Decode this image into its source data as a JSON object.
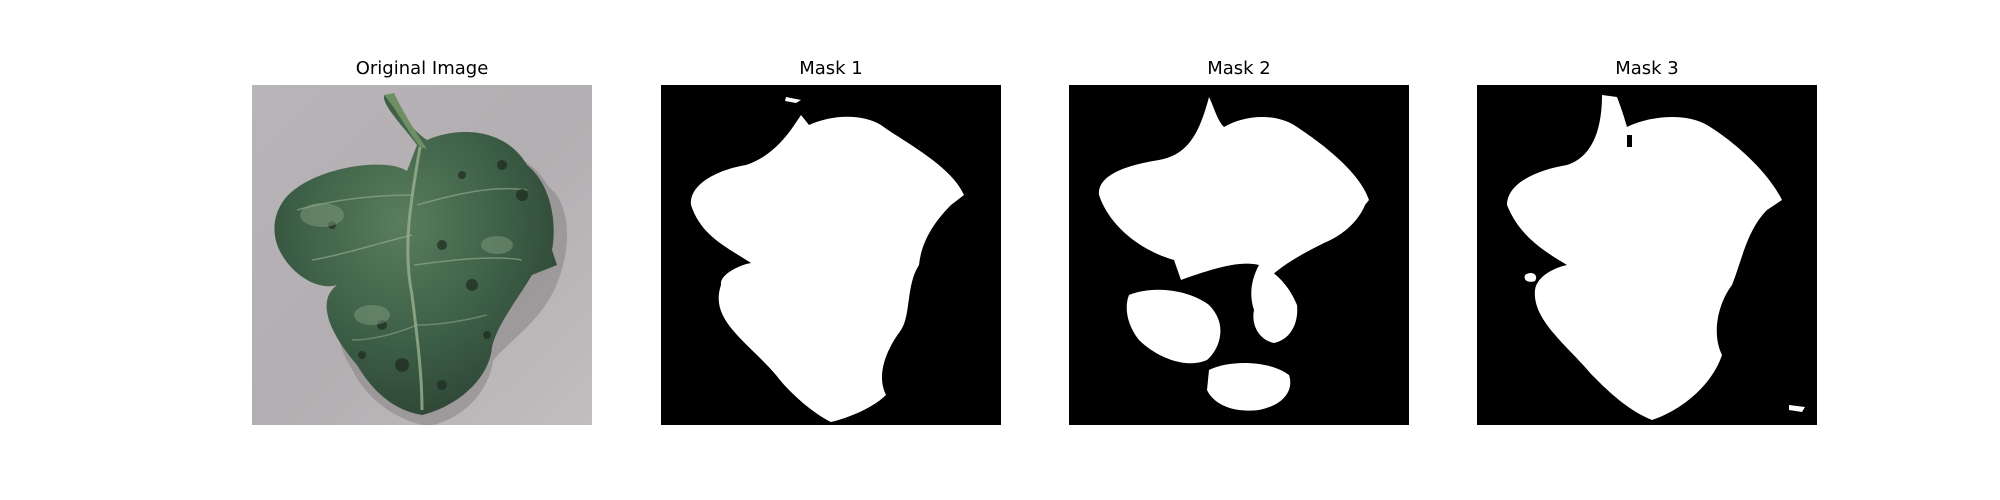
{
  "panels": [
    {
      "title": "Original Image",
      "kind": "photo",
      "subject": "diseased-tomato-leaf",
      "background_color": "#b4b0b3",
      "leaf_color": "#3f5f47"
    },
    {
      "title": "Mask 1",
      "kind": "mask",
      "foreground_color": "#ffffff",
      "background_color": "#000000"
    },
    {
      "title": "Mask 2",
      "kind": "mask",
      "foreground_color": "#ffffff",
      "background_color": "#000000"
    },
    {
      "title": "Mask 3",
      "kind": "mask",
      "foreground_color": "#ffffff",
      "background_color": "#000000"
    }
  ]
}
